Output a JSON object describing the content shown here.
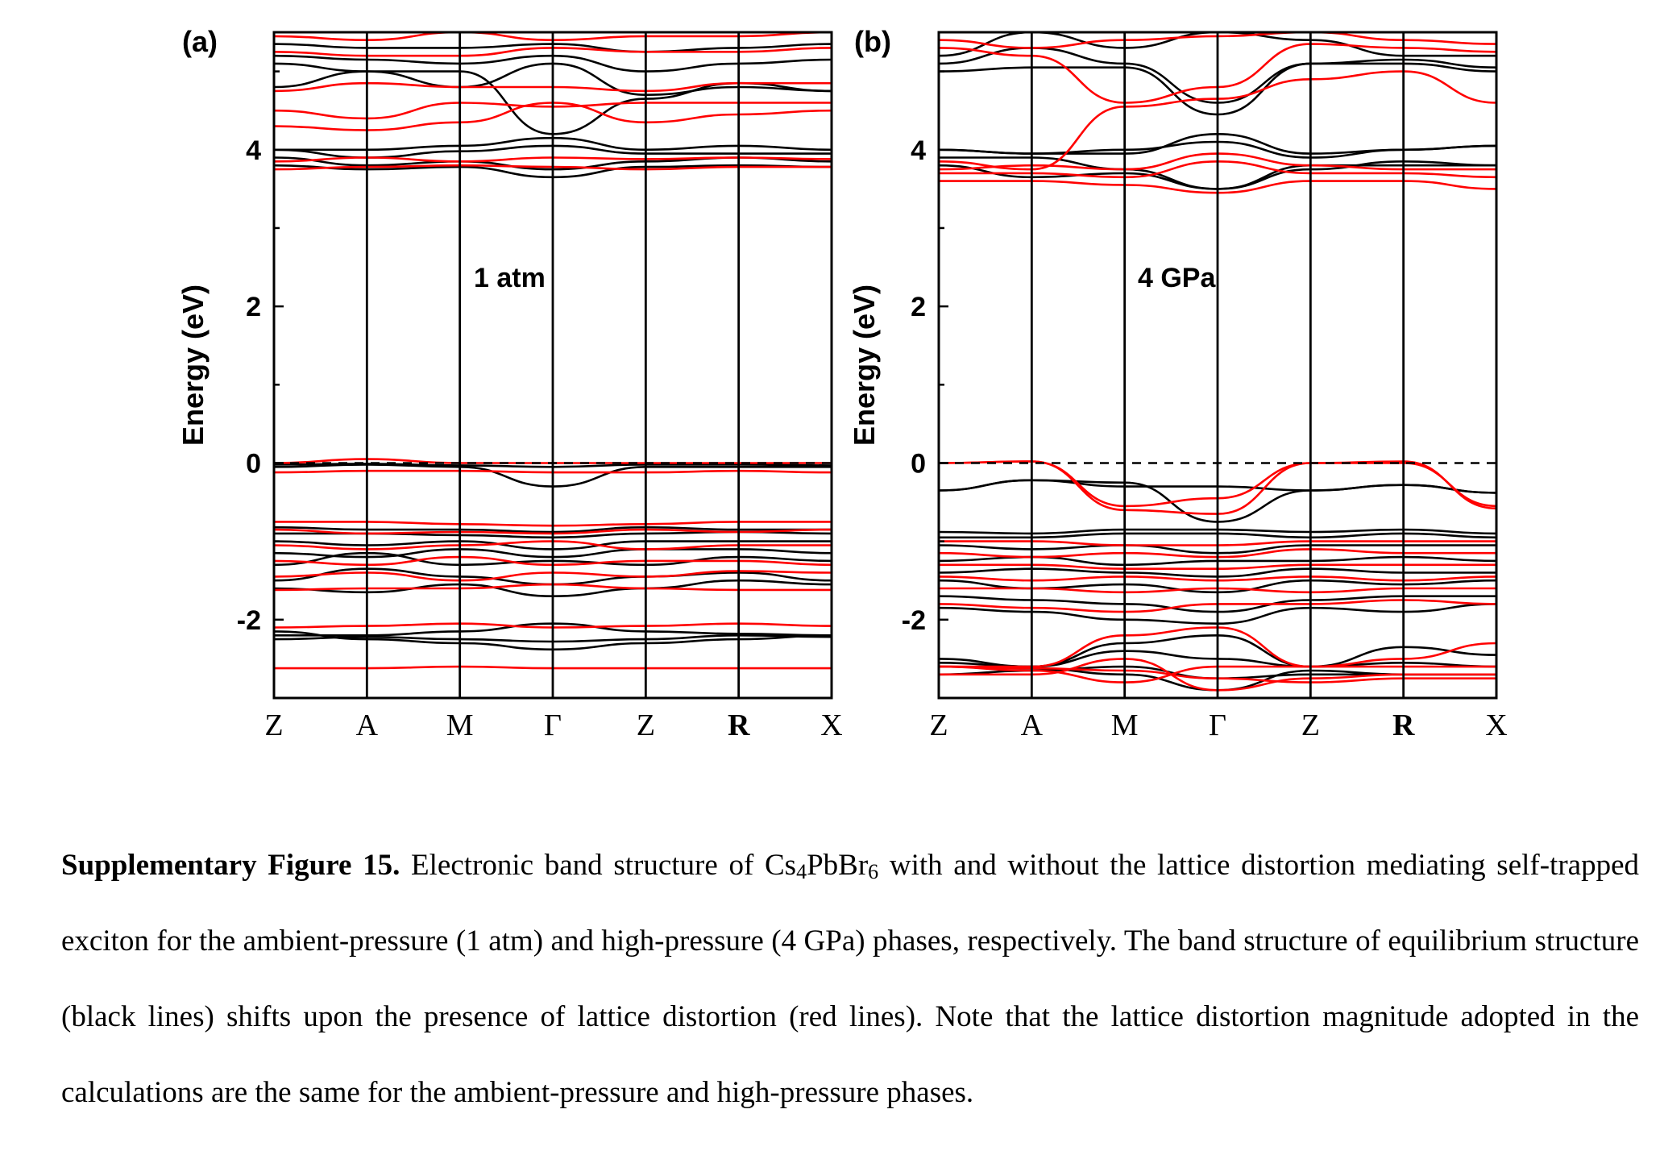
{
  "chart_data": [
    {
      "type": "line",
      "panel_label": "(a)",
      "annotation": "1 atm",
      "ylabel": "Energy (eV)",
      "ylim": [
        -3,
        5.5
      ],
      "yticks": [
        -2,
        0,
        2,
        4
      ],
      "ytick_labels": [
        "-2",
        "0",
        "2",
        "4"
      ],
      "kpath": [
        "Z",
        "A",
        "M",
        "Γ",
        "Z",
        "R",
        "X"
      ],
      "kpath_bold": [
        false,
        false,
        false,
        false,
        false,
        true,
        false
      ],
      "fermi_level": 0,
      "grid": false,
      "series": [
        {
          "color": "#000000",
          "bands": [
            [
              -2.25,
              -2.22,
              -2.25,
              -2.28,
              -2.25,
              -2.2,
              -2.22
            ],
            [
              -2.2,
              -2.2,
              -2.15,
              -2.05,
              -2.15,
              -2.18,
              -2.2
            ],
            [
              -2.15,
              -2.25,
              -2.3,
              -2.38,
              -2.3,
              -2.25,
              -2.2
            ],
            [
              -1.6,
              -1.65,
              -1.55,
              -1.7,
              -1.6,
              -1.5,
              -1.55
            ],
            [
              -1.5,
              -1.35,
              -1.45,
              -1.55,
              -1.45,
              -1.4,
              -1.5
            ],
            [
              -1.3,
              -1.15,
              -1.3,
              -1.25,
              -1.3,
              -1.2,
              -1.25
            ],
            [
              -1.15,
              -1.2,
              -1.1,
              -1.2,
              -1.1,
              -1.1,
              -1.15
            ],
            [
              -1.0,
              -1.05,
              -1.0,
              -1.1,
              -1.0,
              -1.0,
              -1.0
            ],
            [
              -0.9,
              -0.9,
              -0.92,
              -0.95,
              -0.9,
              -0.88,
              -0.9
            ],
            [
              -0.82,
              -0.85,
              -0.85,
              -0.88,
              -0.82,
              -0.85,
              -0.85
            ],
            [
              -0.05,
              -0.02,
              -0.05,
              -0.3,
              -0.05,
              -0.05,
              -0.05
            ],
            [
              -0.02,
              -0.01,
              -0.03,
              -0.05,
              -0.02,
              -0.02,
              -0.03
            ],
            [
              3.8,
              3.75,
              3.78,
              3.65,
              3.78,
              3.8,
              3.78
            ],
            [
              3.9,
              3.8,
              3.85,
              3.75,
              3.85,
              3.9,
              3.85
            ],
            [
              4.0,
              3.9,
              3.98,
              4.05,
              3.95,
              3.95,
              3.95
            ],
            [
              4.0,
              4.0,
              4.05,
              4.15,
              4.0,
              4.05,
              4.0
            ],
            [
              5.1,
              5.0,
              5.0,
              4.2,
              4.65,
              4.85,
              4.75
            ],
            [
              4.8,
              5.0,
              4.8,
              5.1,
              4.7,
              4.8,
              4.75
            ],
            [
              5.2,
              5.15,
              5.1,
              5.2,
              5.0,
              5.1,
              5.15
            ],
            [
              5.35,
              5.3,
              5.3,
              5.35,
              5.25,
              5.3,
              5.35
            ]
          ]
        },
        {
          "color": "#ff0000",
          "bands": [
            [
              -2.62,
              -2.62,
              -2.6,
              -2.62,
              -2.62,
              -2.62,
              -2.62
            ],
            [
              -2.1,
              -2.08,
              -2.05,
              -2.1,
              -2.08,
              -2.05,
              -2.08
            ],
            [
              -1.62,
              -1.6,
              -1.6,
              -1.55,
              -1.6,
              -1.62,
              -1.62
            ],
            [
              -1.45,
              -1.4,
              -1.5,
              -1.4,
              -1.45,
              -1.38,
              -1.4
            ],
            [
              -1.25,
              -1.3,
              -1.2,
              -1.3,
              -1.25,
              -1.25,
              -1.3
            ],
            [
              -1.05,
              -1.1,
              -1.05,
              -1.0,
              -1.1,
              -1.05,
              -1.05
            ],
            [
              -0.85,
              -0.9,
              -0.88,
              -0.9,
              -0.85,
              -0.88,
              -0.85
            ],
            [
              -0.75,
              -0.75,
              -0.78,
              -0.8,
              -0.78,
              -0.75,
              -0.75
            ],
            [
              -0.12,
              -0.1,
              -0.1,
              -0.12,
              -0.12,
              -0.1,
              -0.12
            ],
            [
              0.0,
              0.05,
              0.0,
              0.0,
              0.0,
              0.0,
              0.0
            ],
            [
              3.75,
              3.78,
              3.8,
              3.78,
              3.75,
              3.78,
              3.78
            ],
            [
              3.85,
              3.9,
              3.85,
              3.9,
              3.88,
              3.9,
              3.88
            ],
            [
              4.3,
              4.25,
              4.35,
              4.6,
              4.35,
              4.45,
              4.5
            ],
            [
              4.5,
              4.4,
              4.6,
              4.55,
              4.6,
              4.6,
              4.6
            ],
            [
              4.75,
              4.85,
              4.8,
              4.8,
              4.75,
              4.85,
              4.85
            ],
            [
              5.25,
              5.2,
              5.2,
              5.3,
              5.25,
              5.25,
              5.3
            ],
            [
              5.45,
              5.4,
              5.5,
              5.4,
              5.45,
              5.45,
              5.5
            ]
          ]
        }
      ]
    },
    {
      "type": "line",
      "panel_label": "(b)",
      "annotation": "4 GPa",
      "ylabel": "Energy (eV)",
      "ylim": [
        -3,
        5.5
      ],
      "yticks": [
        -2,
        0,
        2,
        4
      ],
      "ytick_labels": [
        "-2",
        "0",
        "2",
        "4"
      ],
      "kpath": [
        "Z",
        "A",
        "M",
        "Γ",
        "Z",
        "R",
        "X"
      ],
      "kpath_bold": [
        false,
        false,
        false,
        false,
        false,
        true,
        false
      ],
      "fermi_level": 0,
      "grid": false,
      "series": [
        {
          "color": "#000000",
          "bands": [
            [
              -2.7,
              -2.65,
              -2.6,
              -2.75,
              -2.7,
              -2.7,
              -2.7
            ],
            [
              -2.55,
              -2.6,
              -2.4,
              -2.5,
              -2.6,
              -2.55,
              -2.6
            ],
            [
              -2.5,
              -2.6,
              -2.3,
              -2.2,
              -2.6,
              -2.35,
              -2.45
            ],
            [
              -2.6,
              -2.62,
              -2.7,
              -2.9,
              -2.65,
              -2.7,
              -2.7
            ],
            [
              -1.85,
              -1.9,
              -2.0,
              -2.05,
              -1.85,
              -1.9,
              -1.8
            ],
            [
              -1.7,
              -1.75,
              -1.8,
              -1.9,
              -1.75,
              -1.7,
              -1.7
            ],
            [
              -1.5,
              -1.6,
              -1.55,
              -1.65,
              -1.5,
              -1.55,
              -1.5
            ],
            [
              -1.4,
              -1.35,
              -1.4,
              -1.45,
              -1.35,
              -1.4,
              -1.4
            ],
            [
              -1.25,
              -1.2,
              -1.3,
              -1.25,
              -1.25,
              -1.2,
              -1.25
            ],
            [
              -1.05,
              -1.1,
              -1.05,
              -1.15,
              -1.05,
              -1.05,
              -1.05
            ],
            [
              -0.95,
              -0.95,
              -0.9,
              -0.9,
              -0.95,
              -0.9,
              -0.95
            ],
            [
              -0.88,
              -0.9,
              -0.85,
              -0.85,
              -0.88,
              -0.85,
              -0.9
            ],
            [
              -0.35,
              -0.22,
              -0.25,
              -0.75,
              -0.35,
              -0.28,
              -0.38
            ],
            [
              -0.35,
              -0.22,
              -0.3,
              -0.3,
              -0.35,
              -0.28,
              -0.38
            ],
            [
              3.8,
              3.65,
              3.7,
              3.5,
              3.8,
              3.8,
              3.8
            ],
            [
              3.9,
              3.9,
              3.75,
              3.5,
              3.75,
              3.85,
              3.8
            ],
            [
              4.0,
              3.95,
              3.95,
              4.2,
              3.95,
              4.0,
              4.05
            ],
            [
              4.0,
              3.95,
              4.0,
              4.1,
              3.9,
              4.0,
              4.05
            ],
            [
              5.0,
              5.05,
              5.05,
              4.45,
              5.1,
              5.1,
              5.0
            ],
            [
              5.1,
              5.3,
              5.1,
              4.6,
              5.1,
              5.15,
              5.05
            ],
            [
              5.2,
              5.5,
              5.3,
              5.5,
              5.4,
              5.2,
              5.2
            ]
          ]
        },
        {
          "color": "#ff0000",
          "bands": [
            [
              -2.6,
              -2.6,
              -2.2,
              -2.1,
              -2.6,
              -2.5,
              -2.3
            ],
            [
              -2.6,
              -2.65,
              -2.8,
              -2.6,
              -2.6,
              -2.6,
              -2.6
            ],
            [
              -2.7,
              -2.7,
              -2.5,
              -2.9,
              -2.75,
              -2.7,
              -2.7
            ],
            [
              -2.6,
              -2.62,
              -2.65,
              -2.75,
              -2.8,
              -2.75,
              -2.75
            ],
            [
              -1.8,
              -1.85,
              -1.9,
              -1.8,
              -1.8,
              -1.75,
              -1.8
            ],
            [
              -1.6,
              -1.6,
              -1.65,
              -1.6,
              -1.65,
              -1.6,
              -1.6
            ],
            [
              -1.45,
              -1.5,
              -1.45,
              -1.5,
              -1.45,
              -1.5,
              -1.45
            ],
            [
              -1.3,
              -1.3,
              -1.35,
              -1.35,
              -1.3,
              -1.3,
              -1.3
            ],
            [
              -1.15,
              -1.2,
              -1.15,
              -1.2,
              -1.1,
              -1.15,
              -1.15
            ],
            [
              -1.0,
              -1.0,
              -1.05,
              -1.05,
              -1.0,
              -1.0,
              -1.0
            ],
            [
              0.0,
              0.02,
              -0.55,
              -0.45,
              0.0,
              0.0,
              -0.55
            ],
            [
              0.0,
              0.02,
              -0.6,
              -0.65,
              0.0,
              0.02,
              -0.58
            ],
            [
              3.6,
              3.6,
              3.55,
              3.45,
              3.6,
              3.6,
              3.5
            ],
            [
              3.7,
              3.7,
              3.65,
              3.85,
              3.7,
              3.7,
              3.65
            ],
            [
              3.75,
              3.8,
              3.75,
              3.95,
              3.8,
              3.75,
              3.75
            ],
            [
              3.85,
              3.75,
              4.55,
              4.65,
              4.9,
              5.0,
              4.6
            ],
            [
              5.3,
              5.2,
              4.6,
              4.8,
              5.35,
              5.3,
              5.25
            ],
            [
              5.4,
              5.3,
              5.4,
              5.45,
              5.5,
              5.4,
              5.35
            ]
          ]
        }
      ]
    }
  ],
  "caption": {
    "lead": "Supplementary Figure 15.",
    "text_1": " Electronic band structure of Cs",
    "sub_1": "4",
    "text_2": "PbBr",
    "sub_2": "6",
    "text_3": " with and without the lattice distortion mediating self-trapped exciton for the ambient-pressure (1 atm) and high-pressure (4 GPa) phases, respectively. The band structure of equilibrium structure (black lines) shifts upon the presence of lattice distortion (red lines). Note that the lattice distortion magnitude adopted in the calculations are the same for the ambient-pressure and high-pressure phases."
  }
}
